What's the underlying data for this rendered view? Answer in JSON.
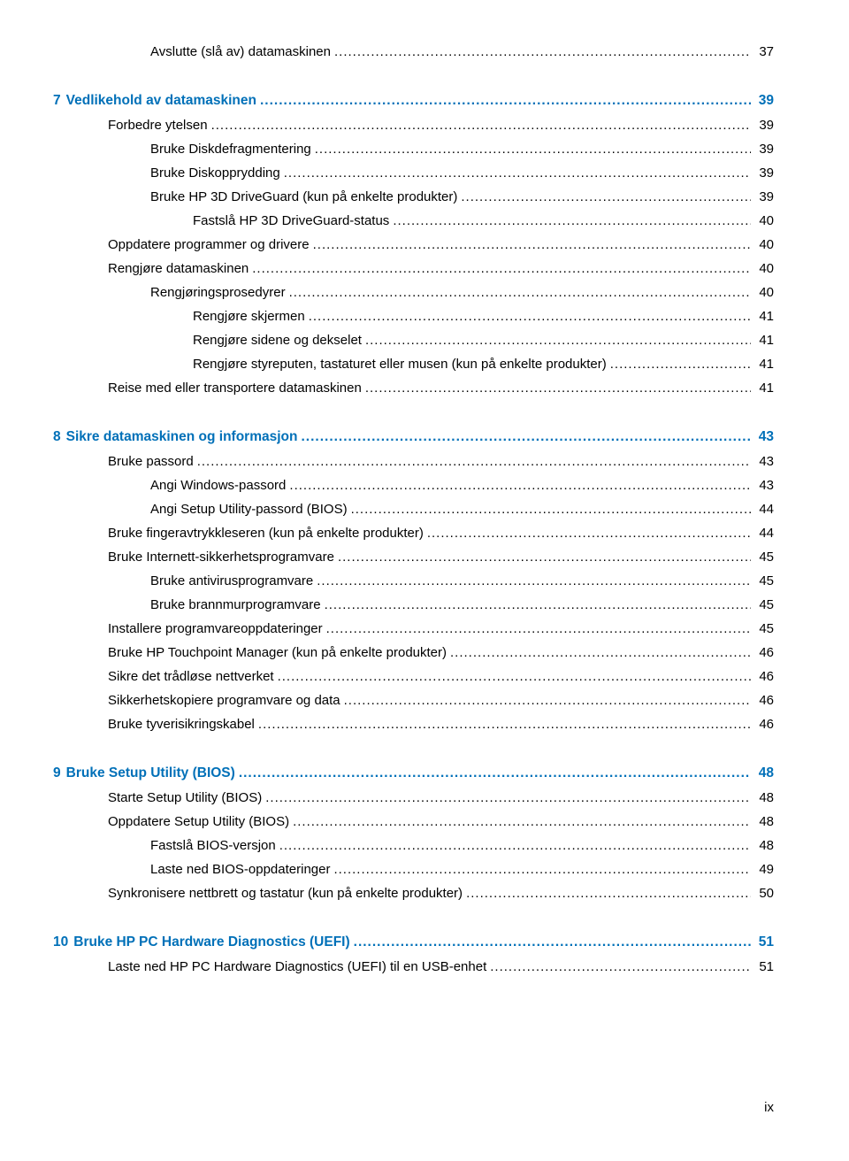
{
  "page_number": "ix",
  "colors": {
    "chapter": "#0070b8",
    "text": "#000000",
    "background": "#ffffff"
  },
  "font": {
    "body_size": 15,
    "chapter_size": 15.5
  },
  "entries": [
    {
      "type": "item",
      "indent": 2,
      "label": "Avslutte (slå av) datamaskinen",
      "page": "37"
    },
    {
      "type": "chapter",
      "num": "7",
      "label": "Vedlikehold av datamaskinen",
      "page": "39"
    },
    {
      "type": "item",
      "indent": 1,
      "label": "Forbedre ytelsen",
      "page": "39"
    },
    {
      "type": "item",
      "indent": 2,
      "label": "Bruke Diskdefragmentering",
      "page": "39"
    },
    {
      "type": "item",
      "indent": 2,
      "label": "Bruke Diskopprydding",
      "page": "39"
    },
    {
      "type": "item",
      "indent": 2,
      "label": "Bruke HP 3D DriveGuard (kun på enkelte produkter)",
      "page": "39"
    },
    {
      "type": "item",
      "indent": 3,
      "label": "Fastslå HP 3D DriveGuard-status",
      "page": "40"
    },
    {
      "type": "item",
      "indent": 1,
      "label": "Oppdatere programmer og drivere",
      "page": "40"
    },
    {
      "type": "item",
      "indent": 1,
      "label": "Rengjøre datamaskinen",
      "page": "40"
    },
    {
      "type": "item",
      "indent": 2,
      "label": "Rengjøringsprosedyrer",
      "page": "40"
    },
    {
      "type": "item",
      "indent": 3,
      "label": "Rengjøre skjermen",
      "page": "41"
    },
    {
      "type": "item",
      "indent": 3,
      "label": "Rengjøre sidene og dekselet",
      "page": "41"
    },
    {
      "type": "item",
      "indent": 3,
      "label": "Rengjøre styreputen, tastaturet eller musen (kun på enkelte produkter)",
      "page": "41"
    },
    {
      "type": "item",
      "indent": 1,
      "label": "Reise med eller transportere datamaskinen",
      "page": "41"
    },
    {
      "type": "chapter",
      "num": "8",
      "label": "Sikre datamaskinen og informasjon",
      "page": "43"
    },
    {
      "type": "item",
      "indent": 1,
      "label": "Bruke passord",
      "page": "43"
    },
    {
      "type": "item",
      "indent": 2,
      "label": "Angi Windows-passord",
      "page": "43"
    },
    {
      "type": "item",
      "indent": 2,
      "label": "Angi Setup Utility-passord (BIOS)",
      "page": "44"
    },
    {
      "type": "item",
      "indent": 1,
      "label": "Bruke fingeravtrykkleseren (kun på enkelte produkter)",
      "page": "44"
    },
    {
      "type": "item",
      "indent": 1,
      "label": "Bruke Internett-sikkerhetsprogramvare",
      "page": "45"
    },
    {
      "type": "item",
      "indent": 2,
      "label": "Bruke antivirusprogramvare",
      "page": "45"
    },
    {
      "type": "item",
      "indent": 2,
      "label": "Bruke brannmurprogramvare",
      "page": "45"
    },
    {
      "type": "item",
      "indent": 1,
      "label": "Installere programvareoppdateringer",
      "page": "45"
    },
    {
      "type": "item",
      "indent": 1,
      "label": "Bruke HP Touchpoint Manager (kun på enkelte produkter)",
      "page": "46"
    },
    {
      "type": "item",
      "indent": 1,
      "label": "Sikre det trådløse nettverket",
      "page": "46"
    },
    {
      "type": "item",
      "indent": 1,
      "label": "Sikkerhetskopiere programvare og data",
      "page": "46"
    },
    {
      "type": "item",
      "indent": 1,
      "label": "Bruke tyverisikringskabel",
      "page": "46"
    },
    {
      "type": "chapter",
      "num": "9",
      "label": "Bruke Setup Utility (BIOS)",
      "page": "48"
    },
    {
      "type": "item",
      "indent": 1,
      "label": "Starte Setup Utility (BIOS)",
      "page": "48"
    },
    {
      "type": "item",
      "indent": 1,
      "label": "Oppdatere Setup Utility (BIOS)",
      "page": "48"
    },
    {
      "type": "item",
      "indent": 2,
      "label": "Fastslå BIOS-versjon",
      "page": "48"
    },
    {
      "type": "item",
      "indent": 2,
      "label": "Laste ned BIOS-oppdateringer",
      "page": "49"
    },
    {
      "type": "item",
      "indent": 1,
      "label": "Synkronisere nettbrett og tastatur (kun på enkelte produkter)",
      "page": "50"
    },
    {
      "type": "chapter",
      "num": "10",
      "label": "Bruke HP PC Hardware Diagnostics (UEFI)",
      "page": "51"
    },
    {
      "type": "item",
      "indent": 1,
      "label": "Laste ned HP PC Hardware Diagnostics (UEFI) til en USB-enhet",
      "page": "51"
    }
  ]
}
